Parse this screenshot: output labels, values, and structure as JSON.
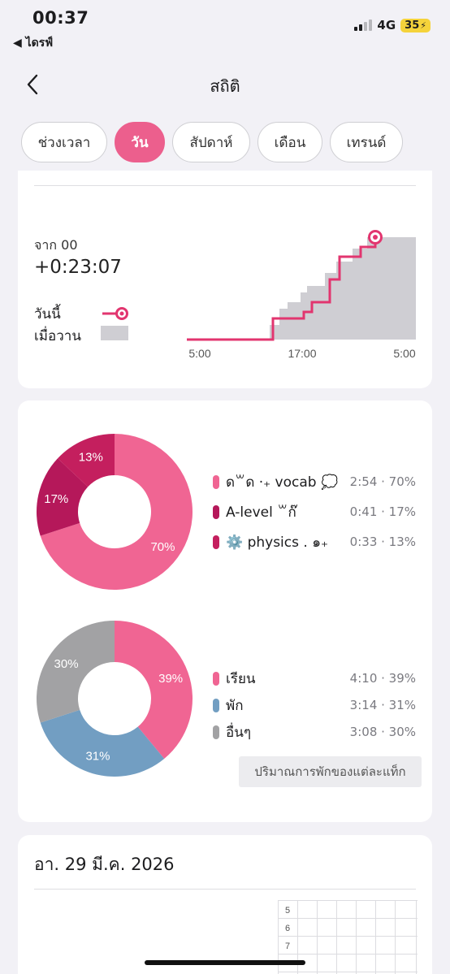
{
  "status_bar": {
    "time": "00:37",
    "back_app": "◀ ไดรฟ์",
    "network": "4G",
    "battery": "35"
  },
  "nav": {
    "title": "สถิติ"
  },
  "tabs": [
    {
      "label": "ช่วงเวลา",
      "active": false
    },
    {
      "label": "วัน",
      "active": true
    },
    {
      "label": "สัปดาห์",
      "active": false
    },
    {
      "label": "เดือน",
      "active": false
    },
    {
      "label": "เทรนด์",
      "active": false
    }
  ],
  "cumulative": {
    "from_label": "จาก 00",
    "from_value": "+0:23:07",
    "legend_today": "วันนี้",
    "legend_yesterday": "เมื่อวาน",
    "x_ticks": [
      "5:00",
      "17:00",
      "5:00"
    ]
  },
  "subjects": {
    "items": [
      {
        "name": "ด꒳ด ‧₊ vocab 💭",
        "value": "2:54 · 70%",
        "percent": 70,
        "label": "70%",
        "color": "#f06593"
      },
      {
        "name": "A-level ꒳ก๊",
        "value": "0:41 · 17%",
        "percent": 17,
        "label": "17%",
        "color": "#b5185a"
      },
      {
        "name": "⚙️ physics .  ๑₊",
        "value": "0:33 · 13%",
        "percent": 13,
        "label": "13%",
        "color": "#c41f5e"
      }
    ]
  },
  "activity": {
    "items": [
      {
        "name": "เรียน",
        "value": "4:10 · 39%",
        "percent": 39,
        "label": "39%",
        "color": "#f06593"
      },
      {
        "name": "พัก",
        "value": "3:14 · 31%",
        "percent": 31,
        "label": "31%",
        "color": "#729ec2"
      },
      {
        "name": "อื่นๆ",
        "value": "3:08 · 30%",
        "percent": 30,
        "label": "30%",
        "color": "#a2a2a4"
      }
    ],
    "button": "ปริมาณการพักของแต่ละแท็ก"
  },
  "day": {
    "date": "อา. 29 มี.ค. 2026",
    "hours": [
      "5",
      "6",
      "7"
    ]
  },
  "colors": {
    "accent": "#ec5f8d",
    "today_line": "#e2356f",
    "yesterday_fill": "#cfced3"
  }
}
